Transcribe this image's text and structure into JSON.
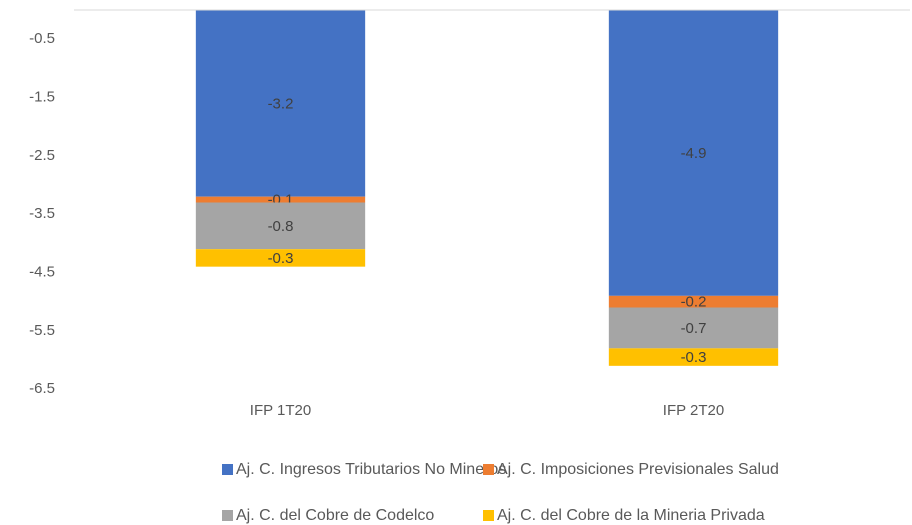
{
  "chart_data": {
    "type": "stacked_bar",
    "categories": [
      "IFP 1T20",
      "IFP 2T20"
    ],
    "series": [
      {
        "name": "Aj. C. Ingresos Tributarios No Mineros",
        "color": "#4472c4",
        "values": [
          -3.2,
          -4.9
        ]
      },
      {
        "name": "Aj. C. Imposiciones Previsionales Salud",
        "color": "#ed7d31",
        "values": [
          -0.1,
          -0.2
        ]
      },
      {
        "name": "Aj. C. del Cobre de Codelco",
        "color": "#a5a5a5",
        "values": [
          -0.8,
          -0.7
        ]
      },
      {
        "name": "Aj. C. del Cobre de la Mineria Privada",
        "color": "#ffc000",
        "values": [
          -0.3,
          -0.3
        ]
      }
    ],
    "ylim": [
      -6.6,
      0
    ],
    "yticks": [
      -0.5,
      -1.5,
      -2.5,
      -3.5,
      -4.5,
      -5.5,
      -6.5
    ],
    "legend": "bottom"
  }
}
